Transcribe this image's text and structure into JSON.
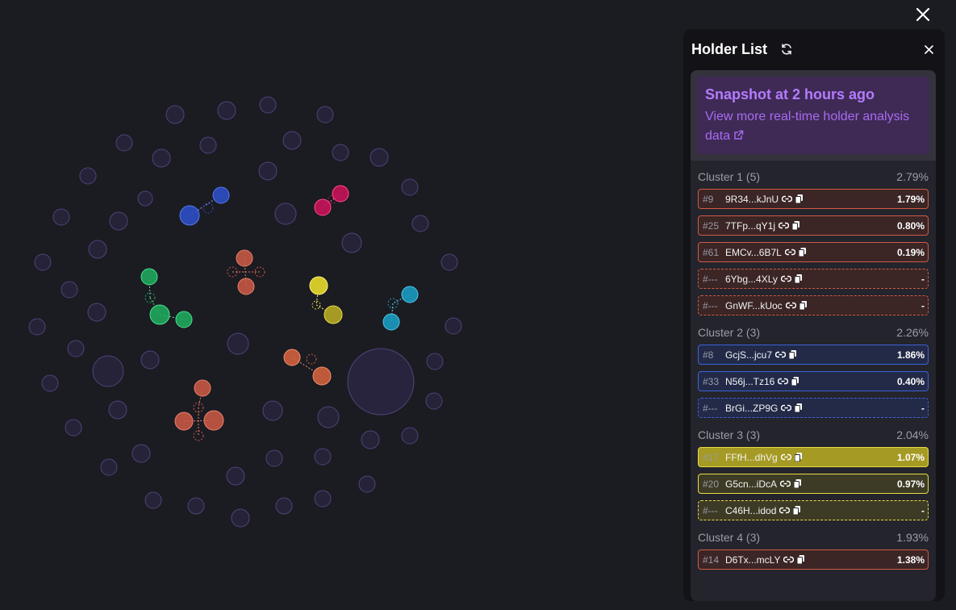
{
  "header": {
    "close_icon": "close-icon"
  },
  "panel": {
    "title": "Holder List",
    "refresh_icon": "refresh-icon",
    "close_icon": "close-icon",
    "snapshot": {
      "title": "Snapshot at 2 hours ago",
      "link_text": "View more real-time holder analysis data",
      "link_icon": "external-link-icon"
    },
    "clusters": [
      {
        "name": "Cluster 1 (5)",
        "total": "2.79%",
        "color": "#cf5b45",
        "holders": [
          {
            "rank": "#9",
            "address": "9R34...kJnU",
            "pct": "1.79%",
            "dashed": false
          },
          {
            "rank": "#25",
            "address": "7TFp...qY1j",
            "pct": "0.80%",
            "dashed": false
          },
          {
            "rank": "#61",
            "address": "EMCv...6B7L",
            "pct": "0.19%",
            "dashed": false
          },
          {
            "rank": "#---",
            "address": "6Ybg...4XLy",
            "pct": "-",
            "dashed": true
          },
          {
            "rank": "#---",
            "address": "GnWF...kUoc",
            "pct": "-",
            "dashed": true
          }
        ]
      },
      {
        "name": "Cluster 2 (3)",
        "total": "2.26%",
        "color": "#3b63d8",
        "holders": [
          {
            "rank": "#8",
            "address": "GcjS...jcu7",
            "pct": "1.86%",
            "dashed": false
          },
          {
            "rank": "#33",
            "address": "N56j...Tz16",
            "pct": "0.40%",
            "dashed": false
          },
          {
            "rank": "#---",
            "address": "BrGi...ZP9G",
            "pct": "-",
            "dashed": true
          }
        ]
      },
      {
        "name": "Cluster 3 (3)",
        "total": "2.04%",
        "color": "#e7dc42",
        "holders": [
          {
            "rank": "#17",
            "address": "FFfH...dhVg",
            "pct": "1.07%",
            "dashed": false
          },
          {
            "rank": "#20",
            "address": "G5cn...iDcA",
            "pct": "0.97%",
            "dashed": false
          },
          {
            "rank": "#---",
            "address": "C46H...idod",
            "pct": "-",
            "dashed": true
          }
        ]
      },
      {
        "name": "Cluster 4 (3)",
        "total": "1.93%",
        "color": "#cf5b45",
        "holders": [
          {
            "rank": "#14",
            "address": "D6Tx...mcLY",
            "pct": "1.38%",
            "dashed": false
          }
        ]
      }
    ],
    "row_icons": [
      "link-icon",
      "copy-icon"
    ]
  },
  "colors": {
    "background": "#1b1b22",
    "bubble_default": "#2a2640",
    "cluster_red": "#cf5b45",
    "cluster_blue": "#2d4fc4",
    "cluster_magenta": "#d0125c",
    "cluster_green": "#1fa85c",
    "cluster_yellow": "#ddd12a",
    "cluster_cyan": "#1a9bc0",
    "cluster_orange": "#d0623c",
    "accent_purple": "#b57bff"
  }
}
